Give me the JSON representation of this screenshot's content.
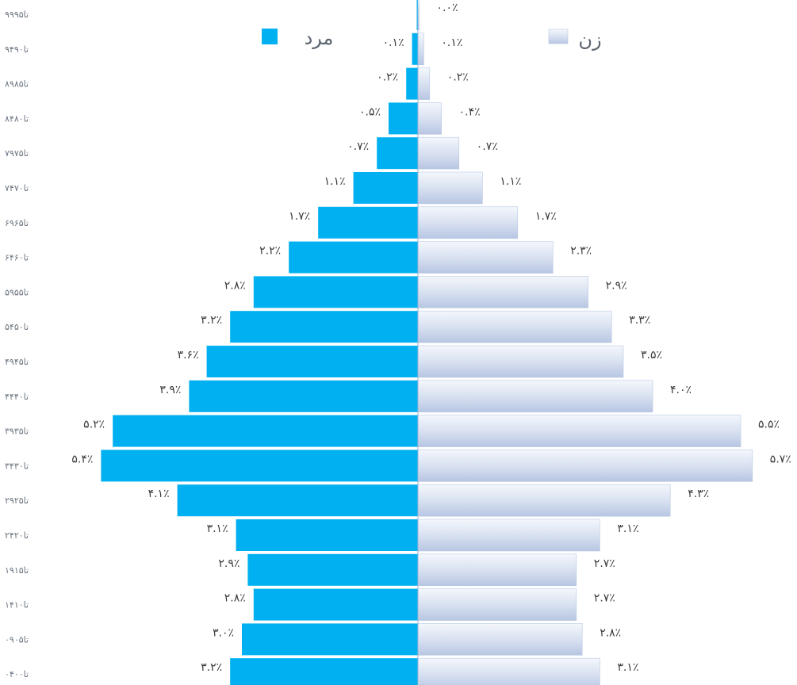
{
  "chart_data": {
    "type": "bar",
    "orientation": "horizontal",
    "subtype": "population-pyramid",
    "unit": "percent",
    "categories": [
      "۹۹تا۹۵",
      "۹۴تا۹۰",
      "۸۹تا۸۵",
      "۸۴تا۸۰",
      "۷۹تا۷۵",
      "۷۴تا۷۰",
      "۶۹تا۶۵",
      "۶۴تا۶۰",
      "۵۹تا۵۵",
      "۵۴تا۵۰",
      "۴۹تا۴۵",
      "۴۴تا۴۰",
      "۳۹تا۳۵",
      "۳۴تا۳۰",
      "۲۹تا۲۵",
      "۲۴تا۲۰",
      "۱۹تا۱۵",
      "۱۴تا۱۰",
      "۰۹تا۰۵",
      "۰۴تا۰۰"
    ],
    "series": [
      {
        "name": "مرد",
        "side": "left",
        "color": "#00b0f0",
        "values": [
          0.0,
          0.1,
          0.2,
          0.5,
          0.7,
          1.1,
          1.7,
          2.2,
          2.8,
          3.2,
          3.6,
          3.9,
          5.2,
          5.4,
          4.1,
          3.1,
          2.9,
          2.8,
          3.0,
          3.2
        ],
        "labels": [
          "",
          "۰.۱٪",
          "۰.۲٪",
          "۰.۵٪",
          "۰.۷٪",
          "۱.۱٪",
          "۱.۷٪",
          "۲.۲٪",
          "۲.۸٪",
          "۳.۲٪",
          "۳.۶٪",
          "۳.۹٪",
          "۵.۲٪",
          "۵.۴٪",
          "۴.۱٪",
          "۳.۱٪",
          "۲.۹٪",
          "۲.۸٪",
          "۳.۰٪",
          "۳.۲٪"
        ]
      },
      {
        "name": "زن",
        "side": "right",
        "color": "#c6d3ea",
        "values": [
          0.0,
          0.1,
          0.2,
          0.4,
          0.7,
          1.1,
          1.7,
          2.3,
          2.9,
          3.3,
          3.5,
          4.0,
          5.5,
          5.7,
          4.3,
          3.1,
          2.7,
          2.7,
          2.8,
          3.1
        ],
        "labels": [
          "۰.۰٪",
          "۰.۱٪",
          "۰.۲٪",
          "۰.۴٪",
          "۰.۷٪",
          "۱.۱٪",
          "۱.۷٪",
          "۲.۳٪",
          "۲.۹٪",
          "۳.۳٪",
          "۳.۵٪",
          "۴.۰٪",
          "۵.۵٪",
          "۵.۷٪",
          "۴.۳٪",
          "۳.۱٪",
          "۲.۷٪",
          "۲.۷٪",
          "۲.۸٪",
          "۳.۱٪"
        ]
      }
    ],
    "legend": {
      "placement": "top",
      "items": [
        {
          "label": "مرد",
          "color": "#00b0f0"
        },
        {
          "label": "زن",
          "color": "#c6d3ea"
        }
      ]
    },
    "xlim": [
      -5.7,
      5.7
    ],
    "grid": false
  }
}
